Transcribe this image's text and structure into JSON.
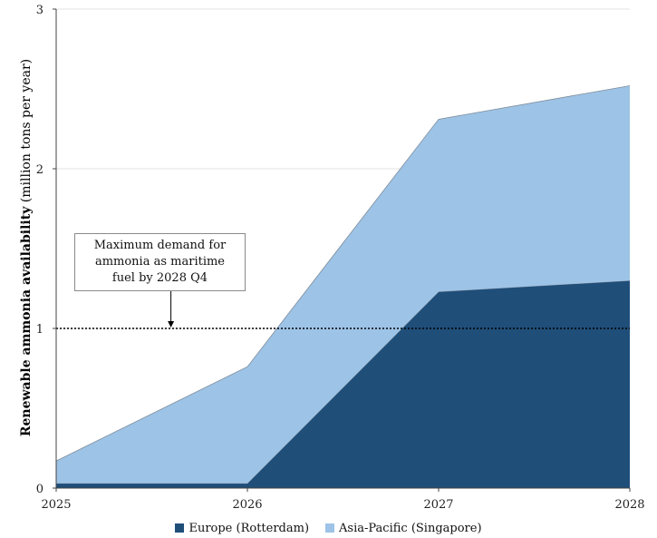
{
  "chart_data": {
    "type": "area",
    "stacked": true,
    "x": [
      2025,
      2026,
      2027,
      2028
    ],
    "x_tick_labels": [
      "2025",
      "2026",
      "2027",
      "2028"
    ],
    "y_tick_labels": [
      "0",
      "1",
      "2",
      "3"
    ],
    "ylim": [
      0,
      3
    ],
    "xlabel": "",
    "ylabel_bold": "Renewable ammonia availability",
    "ylabel_unit": "(million tons per year)",
    "series": [
      {
        "name": "Europe (Rotterdam)",
        "color": "#1f4e79",
        "values": [
          0.03,
          0.03,
          1.23,
          1.3
        ]
      },
      {
        "name": "Asia-Pacific (Singapore)",
        "color": "#9dc3e6",
        "values": [
          0.14,
          0.73,
          1.08,
          1.22
        ]
      }
    ],
    "reference_line": {
      "y": 1.0,
      "style": "dotted"
    },
    "annotation": {
      "lines": [
        "Maximum demand for",
        "ammonia as maritime",
        "fuel by 2028 Q4"
      ],
      "arrow_target_x": 2025.6
    },
    "grid": "horizontal",
    "legend_position": "bottom"
  }
}
